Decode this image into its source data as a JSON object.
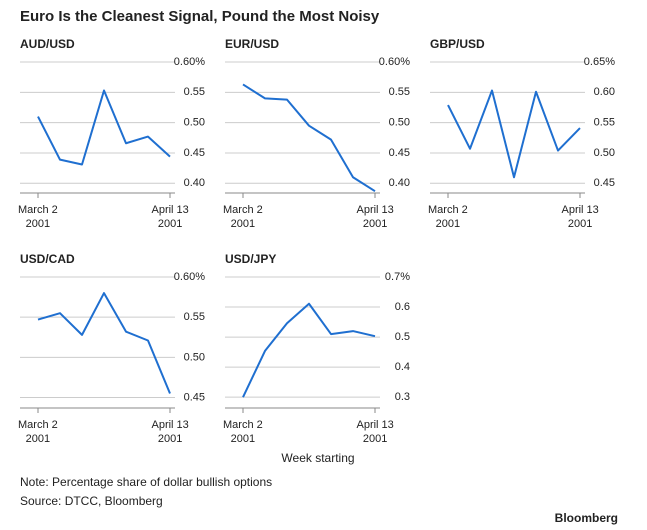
{
  "title": "Euro Is the Cleanest Signal, Pound the Most Noisy",
  "xlabel": "Week starting",
  "note": "Note: Percentage share of dollar bullish options",
  "source": "Source: DTCC, Bloomberg",
  "brand": "Bloomberg",
  "chart_data": [
    {
      "type": "line",
      "title": "AUD/USD",
      "color": "#1f6fd0",
      "categories": [
        "March 2\n2001",
        null,
        null,
        null,
        null,
        null,
        "April 13\n2001"
      ],
      "values": [
        0.51,
        0.439,
        0.431,
        0.553,
        0.466,
        0.477,
        0.444
      ],
      "ylim": [
        0.384,
        0.6
      ],
      "yticks": [
        {
          "value": 0.4,
          "label": "0.40"
        },
        {
          "value": 0.45,
          "label": "0.45"
        },
        {
          "value": 0.5,
          "label": "0.50"
        },
        {
          "value": 0.55,
          "label": "0.55"
        },
        {
          "value": 0.6,
          "label": "0.60%"
        }
      ]
    },
    {
      "type": "line",
      "title": "EUR/USD",
      "color": "#1f6fd0",
      "categories": [
        "March 2\n2001",
        null,
        null,
        null,
        null,
        null,
        "April 13\n2001"
      ],
      "values": [
        0.563,
        0.54,
        0.538,
        0.495,
        0.472,
        0.41,
        0.387
      ],
      "ylim": [
        0.384,
        0.6
      ],
      "yticks": [
        {
          "value": 0.4,
          "label": "0.40"
        },
        {
          "value": 0.45,
          "label": "0.45"
        },
        {
          "value": 0.5,
          "label": "0.50"
        },
        {
          "value": 0.55,
          "label": "0.55"
        },
        {
          "value": 0.6,
          "label": "0.60%"
        }
      ]
    },
    {
      "type": "line",
      "title": "GBP/USD",
      "color": "#1f6fd0",
      "categories": [
        "March 2\n2001",
        null,
        null,
        null,
        null,
        null,
        "April 13\n2001"
      ],
      "values": [
        0.579,
        0.507,
        0.603,
        0.46,
        0.601,
        0.504,
        0.541
      ],
      "ylim": [
        0.434,
        0.65
      ],
      "yticks": [
        {
          "value": 0.45,
          "label": "0.45"
        },
        {
          "value": 0.5,
          "label": "0.50"
        },
        {
          "value": 0.55,
          "label": "0.55"
        },
        {
          "value": 0.6,
          "label": "0.60"
        },
        {
          "value": 0.65,
          "label": "0.65%"
        }
      ]
    },
    {
      "type": "line",
      "title": "USD/CAD",
      "color": "#1f6fd0",
      "categories": [
        "March 2\n2001",
        null,
        null,
        null,
        null,
        null,
        "April 13\n2001"
      ],
      "values": [
        0.547,
        0.555,
        0.528,
        0.58,
        0.532,
        0.521,
        0.455
      ],
      "ylim": [
        0.437,
        0.6
      ],
      "yticks": [
        {
          "value": 0.45,
          "label": "0.45"
        },
        {
          "value": 0.5,
          "label": "0.50"
        },
        {
          "value": 0.55,
          "label": "0.55"
        },
        {
          "value": 0.6,
          "label": "0.60%"
        }
      ]
    },
    {
      "type": "line",
      "title": "USD/JPY",
      "color": "#1f6fd0",
      "categories": [
        "March 2\n2001",
        null,
        null,
        null,
        null,
        null,
        "April 13\n2001"
      ],
      "values": [
        0.3,
        0.454,
        0.546,
        0.611,
        0.51,
        0.52,
        0.503
      ],
      "ylim": [
        0.264,
        0.7
      ],
      "yticks": [
        0.3,
        0.4,
        0.5,
        0.6,
        {
          "value": 0.7,
          "label": "0.7%"
        }
      ]
    }
  ]
}
